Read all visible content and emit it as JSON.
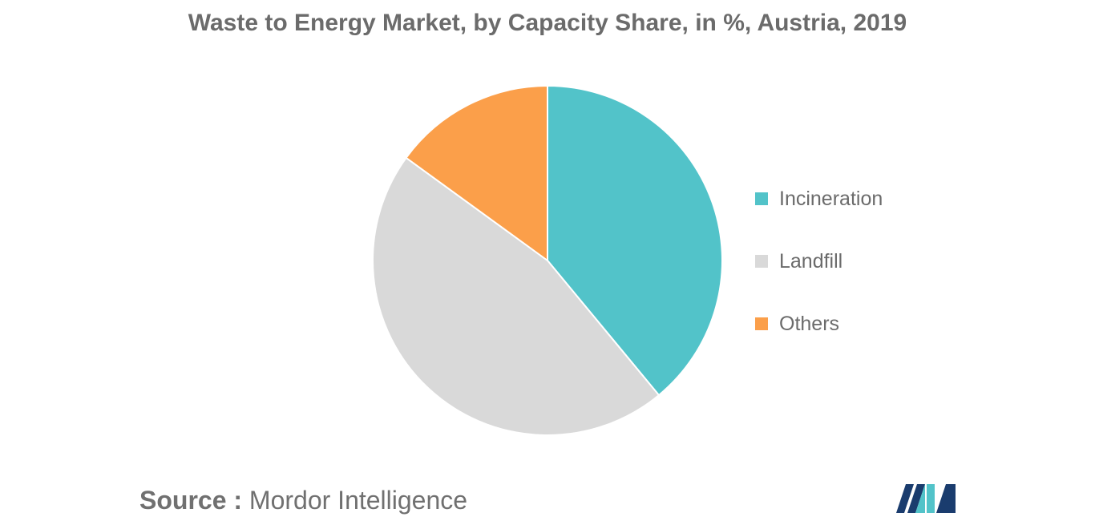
{
  "chart_data": {
    "type": "pie",
    "title": "Waste to Energy Market, by Capacity Share, in %, Austria, 2019",
    "slices": [
      {
        "label": "Incineration",
        "value": 39,
        "color": "#52c3c9"
      },
      {
        "label": "Landfill",
        "value": 46,
        "color": "#d9d9d9"
      },
      {
        "label": "Others",
        "value": 15,
        "color": "#fb9f4a"
      }
    ],
    "start_angle_deg": 0,
    "direction": "clockwise",
    "legend_position": "right"
  },
  "source": {
    "prefix": "Source :",
    "text": "Mordor Intelligence"
  },
  "logo": {
    "icon": "mordor-intelligence-logo-icon",
    "colors": [
      "#1a3c6e",
      "#52c3c9"
    ]
  }
}
